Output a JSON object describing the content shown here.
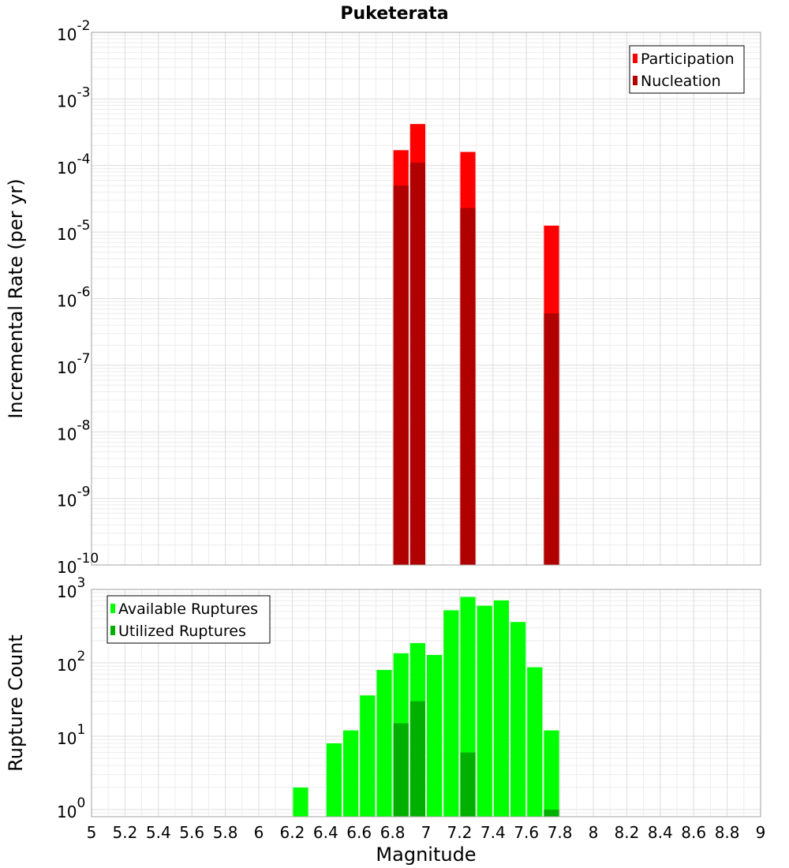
{
  "chart_data": {
    "title": "Puketerata",
    "xlabel": "Magnitude",
    "xlim": [
      5,
      9
    ],
    "x_ticks": [
      "5",
      "5.2",
      "5.4",
      "5.6",
      "5.8",
      "6",
      "6.2",
      "6.4",
      "6.6",
      "6.8",
      "7",
      "7.2",
      "7.4",
      "7.6",
      "7.8",
      "8",
      "8.2",
      "8.4",
      "8.6",
      "8.8",
      "9"
    ],
    "bin_width": 0.1,
    "panels": [
      {
        "type": "bar",
        "scale": "log",
        "ylabel": "Incremental Rate (per yr)",
        "ylim": [
          1e-10,
          0.01
        ],
        "y_tick_exponents": [
          -10,
          -9,
          -8,
          -7,
          -6,
          -5,
          -4,
          -3,
          -2
        ],
        "grid": true,
        "legend_position": "top-right",
        "series": [
          {
            "name": "Participation",
            "color": "#ff0000",
            "points": [
              {
                "x": 6.85,
                "y": 0.00017
              },
              {
                "x": 6.95,
                "y": 0.00042
              },
              {
                "x": 7.25,
                "y": 0.00016
              },
              {
                "x": 7.75,
                "y": 1.25e-05
              }
            ]
          },
          {
            "name": "Nucleation",
            "color": "#b00000",
            "points": [
              {
                "x": 6.85,
                "y": 5e-05
              },
              {
                "x": 6.95,
                "y": 0.00011
              },
              {
                "x": 7.25,
                "y": 2.3e-05
              },
              {
                "x": 7.75,
                "y": 6e-07
              }
            ]
          }
        ]
      },
      {
        "type": "bar",
        "scale": "log",
        "ylabel": "Rupture Count",
        "ylim": [
          0.8,
          1000
        ],
        "y_tick_exponents": [
          0,
          1,
          2,
          3
        ],
        "grid": true,
        "legend_position": "top-left",
        "series": [
          {
            "name": "Available Ruptures",
            "color": "#00ff00",
            "points": [
              {
                "x": 6.25,
                "y": 2
              },
              {
                "x": 6.45,
                "y": 8
              },
              {
                "x": 6.55,
                "y": 12
              },
              {
                "x": 6.65,
                "y": 36
              },
              {
                "x": 6.75,
                "y": 80
              },
              {
                "x": 6.85,
                "y": 135
              },
              {
                "x": 6.95,
                "y": 186
              },
              {
                "x": 7.05,
                "y": 128
              },
              {
                "x": 7.15,
                "y": 520
              },
              {
                "x": 7.25,
                "y": 790
              },
              {
                "x": 7.35,
                "y": 600
              },
              {
                "x": 7.45,
                "y": 710
              },
              {
                "x": 7.55,
                "y": 360
              },
              {
                "x": 7.65,
                "y": 87
              },
              {
                "x": 7.75,
                "y": 12
              }
            ]
          },
          {
            "name": "Utilized Ruptures",
            "color": "#00b000",
            "points": [
              {
                "x": 6.85,
                "y": 15
              },
              {
                "x": 6.95,
                "y": 30
              },
              {
                "x": 7.25,
                "y": 6
              },
              {
                "x": 7.75,
                "y": 1
              }
            ]
          }
        ]
      }
    ]
  }
}
